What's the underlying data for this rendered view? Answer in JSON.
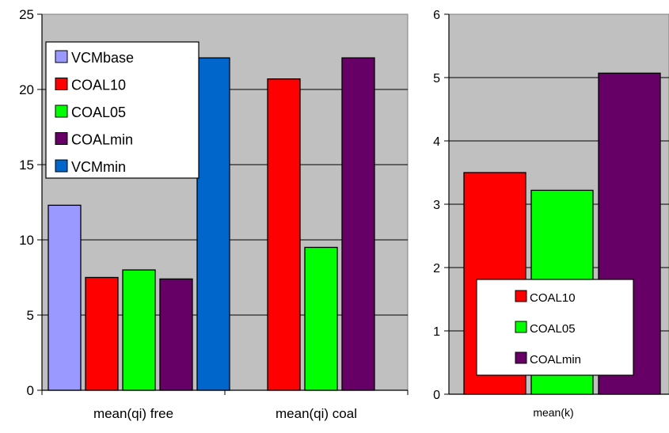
{
  "chart_data": [
    {
      "type": "bar",
      "categories": [
        "mean(qi) free",
        "mean(qi) coal"
      ],
      "series": [
        {
          "name": "VCMbase",
          "color": "#9999ff",
          "values": [
            12.3,
            null
          ]
        },
        {
          "name": "COAL10",
          "color": "#ff0000",
          "values": [
            7.5,
            20.7
          ]
        },
        {
          "name": "COAL05",
          "color": "#00ff00",
          "values": [
            8.0,
            9.5
          ]
        },
        {
          "name": "COALmin",
          "color": "#660066",
          "values": [
            7.4,
            22.1
          ]
        },
        {
          "name": "VCMmin",
          "color": "#0066cc",
          "values": [
            22.1,
            null
          ]
        }
      ],
      "ylim": [
        0,
        25
      ],
      "yticks": [
        "0",
        "5",
        "10",
        "15",
        "20",
        "25"
      ],
      "grid": true,
      "legend": "top-left",
      "plot_background": "#c0c0c0"
    },
    {
      "type": "bar",
      "categories": [
        "mean(k)"
      ],
      "series": [
        {
          "name": "COAL10",
          "color": "#ff0000",
          "values": [
            3.5
          ]
        },
        {
          "name": "COAL05",
          "color": "#00ff00",
          "values": [
            3.22
          ]
        },
        {
          "name": "COALmin",
          "color": "#660066",
          "values": [
            5.07
          ]
        }
      ],
      "ylim": [
        0,
        6
      ],
      "yticks": [
        "0",
        "1",
        "2",
        "3",
        "4",
        "5",
        "6"
      ],
      "grid": true,
      "legend": "bottom-center",
      "plot_background": "#c0c0c0"
    }
  ]
}
